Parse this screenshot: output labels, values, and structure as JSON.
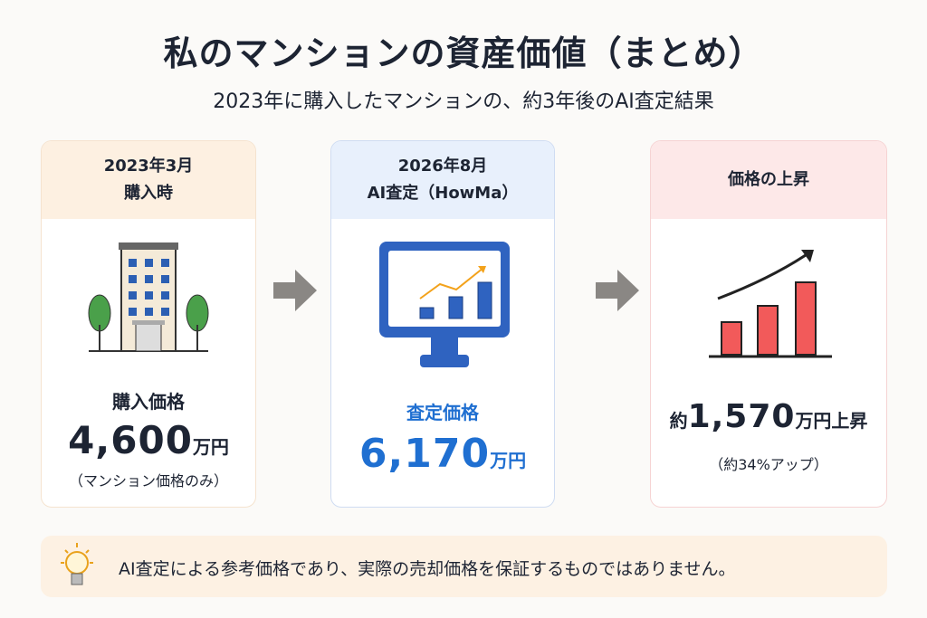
{
  "header": {
    "title": "私のマンションの資産価値（まとめ）",
    "subtitle": "2023年に購入したマンションの、約3年後のAI査定結果"
  },
  "cards": [
    {
      "heading": [
        "2023年3月",
        "購入時"
      ],
      "label": "購入価格",
      "prefix": null,
      "value": "4,600",
      "unit": "万円",
      "note": "（マンション価格のみ）"
    },
    {
      "heading": [
        "2026年8月",
        "AI査定（HowMa）"
      ],
      "label": "査定価格",
      "prefix": null,
      "value": "6,170",
      "unit": "万円",
      "note": null
    },
    {
      "heading": [
        "価格の上昇"
      ],
      "label": null,
      "prefix": "約",
      "value": "1,570",
      "unit": "万円上昇",
      "note": "（約34%アップ）"
    }
  ],
  "footer": {
    "text": "AI査定による参考価格であり、実際の売却価格を保証するものではありません。"
  }
}
